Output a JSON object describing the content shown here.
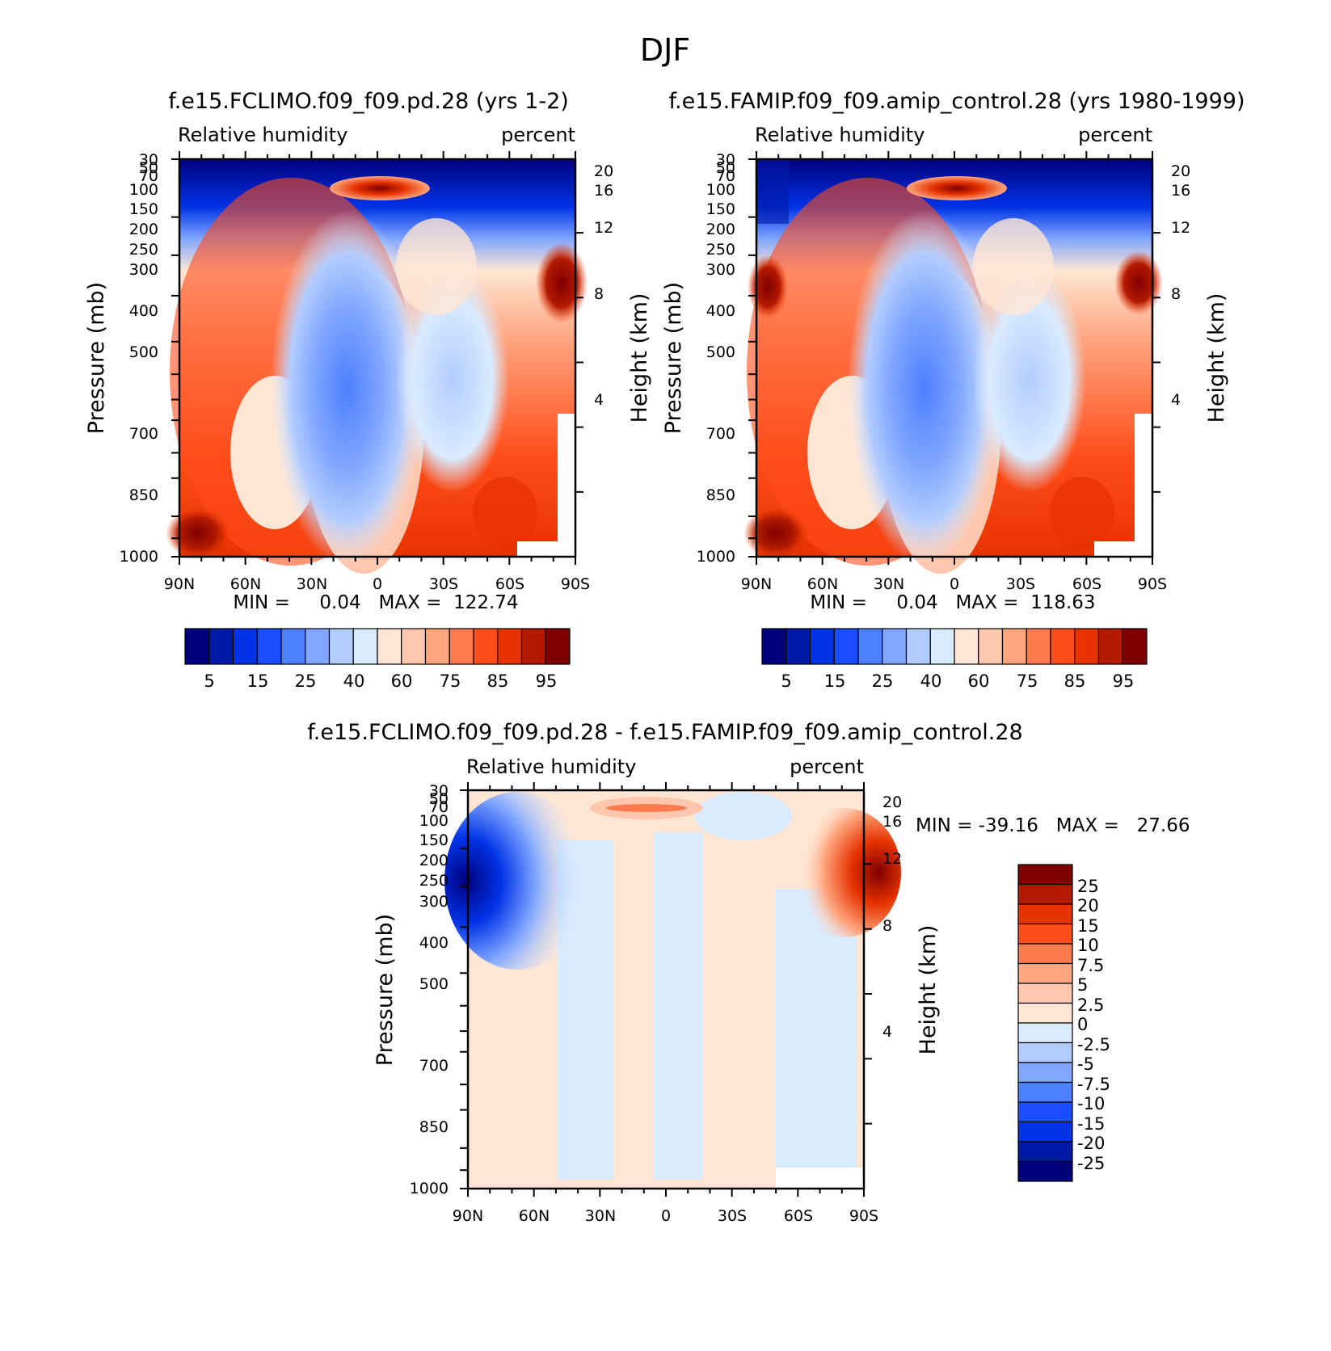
{
  "figure": {
    "title": "DJF"
  },
  "chart_data": [
    {
      "type": "heatmap",
      "panel_id": "p1",
      "case_title": "f.e15.FCLIMO.f09_f09.pd.28 (yrs 1-2)",
      "left_label": "Relative humidity",
      "right_label": "percent",
      "ylabel": "Pressure (mb)",
      "ylabel_right": "Height (km)",
      "x_ticks": [
        "90N",
        "60N",
        "30N",
        "0",
        "30S",
        "60S",
        "90S"
      ],
      "x_range": [
        90,
        -90
      ],
      "y_ticks": [
        "30",
        "50",
        "70",
        "100",
        "150",
        "200",
        "250",
        "300",
        "400",
        "500",
        "700",
        "850",
        "1000"
      ],
      "y_range_mb": [
        1000,
        30
      ],
      "height_ticks": [
        "20",
        "16",
        "12",
        "8",
        "4"
      ],
      "stats": "MIN =     0.04   MAX =  122.74",
      "contour_levels": [
        "5",
        "10",
        "15",
        "20",
        "25",
        "30",
        "40",
        "50",
        "60",
        "70",
        "75",
        "80",
        "85",
        "90",
        "95"
      ],
      "colorbar_labels": [
        "5",
        "15",
        "25",
        "40",
        "60",
        "75",
        "85",
        "95"
      ]
    },
    {
      "type": "heatmap",
      "panel_id": "p2",
      "case_title": "f.e15.FAMIP.f09_f09.amip_control.28 (yrs 1980-1999)",
      "left_label": "Relative humidity",
      "right_label": "percent",
      "ylabel": "Pressure (mb)",
      "ylabel_right": "Height (km)",
      "x_ticks": [
        "90N",
        "60N",
        "30N",
        "0",
        "30S",
        "60S",
        "90S"
      ],
      "x_range": [
        90,
        -90
      ],
      "y_ticks": [
        "30",
        "50",
        "70",
        "100",
        "150",
        "200",
        "250",
        "300",
        "400",
        "500",
        "700",
        "850",
        "1000"
      ],
      "y_range_mb": [
        1000,
        30
      ],
      "height_ticks": [
        "20",
        "16",
        "12",
        "8",
        "4"
      ],
      "stats": "MIN =     0.04   MAX =  118.63",
      "contour_levels": [
        "5",
        "10",
        "15",
        "20",
        "25",
        "30",
        "40",
        "50",
        "60",
        "70",
        "75",
        "80",
        "85",
        "90",
        "95"
      ],
      "colorbar_labels": [
        "5",
        "15",
        "25",
        "40",
        "60",
        "75",
        "85",
        "95"
      ]
    },
    {
      "type": "heatmap",
      "panel_id": "p3",
      "case_title": "f.e15.FCLIMO.f09_f09.pd.28 - f.e15.FAMIP.f09_f09.amip_control.28",
      "left_label": "Relative humidity",
      "right_label": "percent",
      "ylabel": "Pressure (mb)",
      "ylabel_right": "Height (km)",
      "x_ticks": [
        "90N",
        "60N",
        "30N",
        "0",
        "30S",
        "60S",
        "90S"
      ],
      "x_range": [
        90,
        -90
      ],
      "y_ticks": [
        "30",
        "50",
        "70",
        "100",
        "150",
        "200",
        "250",
        "300",
        "400",
        "500",
        "700",
        "850",
        "1000"
      ],
      "y_range_mb": [
        1000,
        30
      ],
      "height_ticks": [
        "20",
        "16",
        "12",
        "8",
        "4"
      ],
      "stats": "MIN = -39.16   MAX =   27.66",
      "contour_levels": [
        "-25",
        "-20",
        "-15",
        "-10",
        "-7.5",
        "-5",
        "-2.5",
        "0",
        "2.5",
        "5",
        "7.5",
        "10",
        "15",
        "20",
        "25"
      ],
      "colorbar_labels": [
        "25",
        "20",
        "15",
        "10",
        "7.5",
        "5",
        "2.5",
        "0",
        "-2.5",
        "-5",
        "-7.5",
        "-10",
        "-15",
        "-20",
        "-25"
      ]
    }
  ],
  "colors": {
    "abs_scale": [
      "#00007d",
      "#0019a6",
      "#0033e6",
      "#1a4dff",
      "#4d80ff",
      "#80a6ff",
      "#b3ccff",
      "#d9ebff",
      "#ffe6d4",
      "#ffc7ad",
      "#ffa680",
      "#ff7a4d",
      "#ff4d1a",
      "#e63300",
      "#b31a00",
      "#800000"
    ],
    "diff_scale": [
      "#800000",
      "#b31a00",
      "#e63300",
      "#ff4d1a",
      "#ff7a4d",
      "#ffa680",
      "#ffc7ad",
      "#ffe6d4",
      "#d9ebff",
      "#b3ccff",
      "#80a6ff",
      "#4d80ff",
      "#1a4dff",
      "#0033e6",
      "#0019a6",
      "#00007d"
    ]
  }
}
